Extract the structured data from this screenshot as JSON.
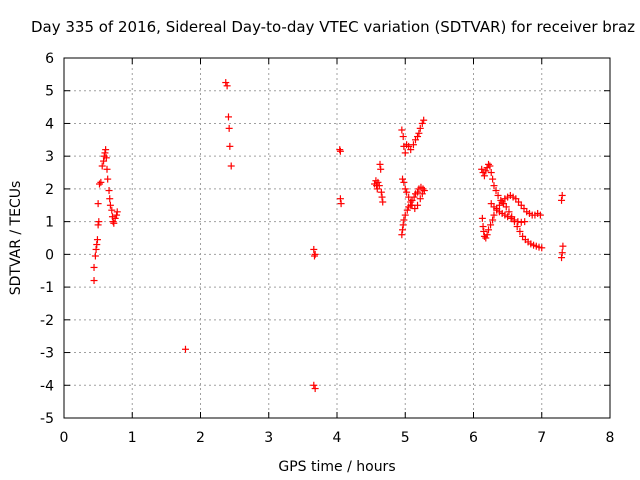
{
  "chart_data": {
    "type": "scatter",
    "title": "Day 335 of 2016, Sidereal Day-to-day VTEC variation (SDTVAR) for receiver braz",
    "xlabel": "GPS time / hours",
    "ylabel": "SDTVAR / TECUs",
    "xlim": [
      0,
      8
    ],
    "ylim": [
      -5,
      6
    ],
    "xticks": [
      0,
      1,
      2,
      3,
      4,
      5,
      6,
      7,
      8
    ],
    "yticks": [
      -5,
      -4,
      -3,
      -2,
      -1,
      0,
      1,
      2,
      3,
      4,
      5,
      6
    ],
    "xtick_labels": [
      "0",
      "1",
      "2",
      "3",
      "4",
      "5",
      "6",
      "7",
      "8"
    ],
    "ytick_labels": [
      "-5",
      "-4",
      "-3",
      "-2",
      "-1",
      "0",
      "1",
      "2",
      "3",
      "4",
      "5",
      "6"
    ],
    "grid": true,
    "marker": "plus",
    "color": "#ff0000",
    "series": [
      {
        "name": "SDTVAR",
        "points": [
          [
            0.44,
            -0.8
          ],
          [
            0.44,
            -0.4
          ],
          [
            0.46,
            -0.05
          ],
          [
            0.47,
            0.15
          ],
          [
            0.48,
            0.3
          ],
          [
            0.49,
            0.45
          ],
          [
            0.5,
            0.9
          ],
          [
            0.51,
            1.0
          ],
          [
            0.5,
            1.55
          ],
          [
            0.52,
            2.15
          ],
          [
            0.54,
            2.2
          ],
          [
            0.56,
            2.7
          ],
          [
            0.58,
            2.85
          ],
          [
            0.59,
            3.0
          ],
          [
            0.6,
            3.1
          ],
          [
            0.61,
            3.2
          ],
          [
            0.62,
            2.95
          ],
          [
            0.63,
            2.6
          ],
          [
            0.64,
            2.3
          ],
          [
            0.66,
            1.95
          ],
          [
            0.67,
            1.7
          ],
          [
            0.68,
            1.5
          ],
          [
            0.7,
            1.35
          ],
          [
            0.71,
            1.15
          ],
          [
            0.72,
            1.0
          ],
          [
            0.73,
            0.95
          ],
          [
            0.75,
            1.1
          ],
          [
            0.77,
            1.2
          ],
          [
            0.78,
            1.3
          ],
          [
            1.78,
            -2.9
          ],
          [
            2.37,
            5.25
          ],
          [
            2.39,
            5.15
          ],
          [
            2.41,
            4.2
          ],
          [
            2.42,
            3.85
          ],
          [
            2.43,
            3.3
          ],
          [
            2.45,
            2.7
          ],
          [
            3.66,
            0.15
          ],
          [
            3.67,
            -0.05
          ],
          [
            3.68,
            0.0
          ],
          [
            3.66,
            -4.0
          ],
          [
            3.68,
            -4.1
          ],
          [
            4.04,
            3.2
          ],
          [
            4.05,
            3.15
          ],
          [
            4.05,
            1.7
          ],
          [
            4.06,
            1.55
          ],
          [
            4.55,
            2.15
          ],
          [
            4.57,
            2.25
          ],
          [
            4.58,
            2.1
          ],
          [
            4.59,
            2.0
          ],
          [
            4.6,
            2.2
          ],
          [
            4.62,
            2.1
          ],
          [
            4.63,
            2.75
          ],
          [
            4.64,
            2.6
          ],
          [
            4.65,
            1.9
          ],
          [
            4.66,
            1.75
          ],
          [
            4.67,
            1.6
          ],
          [
            4.95,
            3.8
          ],
          [
            4.97,
            3.6
          ],
          [
            4.98,
            3.3
          ],
          [
            5.0,
            3.1
          ],
          [
            5.02,
            3.35
          ],
          [
            5.05,
            3.3
          ],
          [
            5.08,
            3.2
          ],
          [
            5.12,
            3.35
          ],
          [
            5.15,
            3.5
          ],
          [
            5.18,
            3.6
          ],
          [
            5.2,
            3.7
          ],
          [
            5.22,
            3.85
          ],
          [
            5.25,
            4.0
          ],
          [
            5.27,
            4.1
          ],
          [
            4.95,
            0.6
          ],
          [
            4.96,
            0.75
          ],
          [
            4.97,
            0.9
          ],
          [
            4.98,
            1.05
          ],
          [
            5.0,
            1.2
          ],
          [
            5.03,
            1.35
          ],
          [
            5.05,
            1.45
          ],
          [
            5.08,
            1.5
          ],
          [
            5.1,
            1.65
          ],
          [
            5.13,
            1.75
          ],
          [
            5.15,
            1.85
          ],
          [
            5.18,
            1.9
          ],
          [
            5.2,
            2.0
          ],
          [
            5.23,
            2.05
          ],
          [
            5.26,
            2.0
          ],
          [
            5.28,
            1.95
          ],
          [
            4.96,
            2.3
          ],
          [
            4.98,
            2.2
          ],
          [
            5.0,
            2.0
          ],
          [
            5.02,
            1.9
          ],
          [
            5.05,
            1.75
          ],
          [
            5.08,
            1.6
          ],
          [
            5.1,
            1.5
          ],
          [
            5.14,
            1.4
          ],
          [
            5.18,
            1.5
          ],
          [
            5.22,
            1.7
          ],
          [
            5.25,
            1.85
          ],
          [
            6.12,
            2.6
          ],
          [
            6.14,
            2.5
          ],
          [
            6.16,
            2.4
          ],
          [
            6.18,
            2.55
          ],
          [
            6.2,
            2.65
          ],
          [
            6.22,
            2.75
          ],
          [
            6.24,
            2.7
          ],
          [
            6.26,
            2.5
          ],
          [
            6.28,
            2.3
          ],
          [
            6.3,
            2.1
          ],
          [
            6.33,
            1.95
          ],
          [
            6.36,
            1.8
          ],
          [
            6.4,
            1.65
          ],
          [
            6.44,
            1.55
          ],
          [
            6.48,
            1.45
          ],
          [
            6.52,
            1.3
          ],
          [
            6.56,
            1.15
          ],
          [
            6.6,
            1.0
          ],
          [
            6.64,
            0.85
          ],
          [
            6.68,
            0.7
          ],
          [
            6.72,
            0.55
          ],
          [
            6.76,
            0.45
          ],
          [
            6.8,
            0.38
          ],
          [
            6.84,
            0.32
          ],
          [
            6.88,
            0.28
          ],
          [
            6.92,
            0.25
          ],
          [
            6.96,
            0.22
          ],
          [
            7.0,
            0.2
          ],
          [
            6.13,
            1.1
          ],
          [
            6.14,
            0.85
          ],
          [
            6.15,
            0.7
          ],
          [
            6.16,
            0.55
          ],
          [
            6.18,
            0.5
          ],
          [
            6.2,
            0.6
          ],
          [
            6.22,
            0.75
          ],
          [
            6.25,
            0.9
          ],
          [
            6.28,
            1.05
          ],
          [
            6.3,
            1.2
          ],
          [
            6.34,
            1.35
          ],
          [
            6.38,
            1.5
          ],
          [
            6.42,
            1.6
          ],
          [
            6.46,
            1.7
          ],
          [
            6.5,
            1.75
          ],
          [
            6.54,
            1.8
          ],
          [
            6.58,
            1.75
          ],
          [
            6.62,
            1.7
          ],
          [
            6.66,
            1.6
          ],
          [
            6.7,
            1.5
          ],
          [
            6.74,
            1.4
          ],
          [
            6.78,
            1.3
          ],
          [
            6.82,
            1.25
          ],
          [
            6.86,
            1.2
          ],
          [
            6.9,
            1.2
          ],
          [
            6.94,
            1.25
          ],
          [
            6.98,
            1.2
          ],
          [
            6.26,
            1.55
          ],
          [
            6.3,
            1.45
          ],
          [
            6.34,
            1.4
          ],
          [
            6.38,
            1.3
          ],
          [
            6.42,
            1.25
          ],
          [
            6.46,
            1.2
          ],
          [
            6.5,
            1.15
          ],
          [
            6.55,
            1.1
          ],
          [
            6.6,
            1.05
          ],
          [
            6.65,
            1.0
          ],
          [
            6.7,
            0.98
          ],
          [
            6.75,
            1.0
          ],
          [
            7.29,
            1.65
          ],
          [
            7.3,
            1.8
          ],
          [
            7.31,
            0.25
          ],
          [
            7.3,
            0.05
          ],
          [
            7.29,
            -0.1
          ]
        ]
      }
    ]
  }
}
